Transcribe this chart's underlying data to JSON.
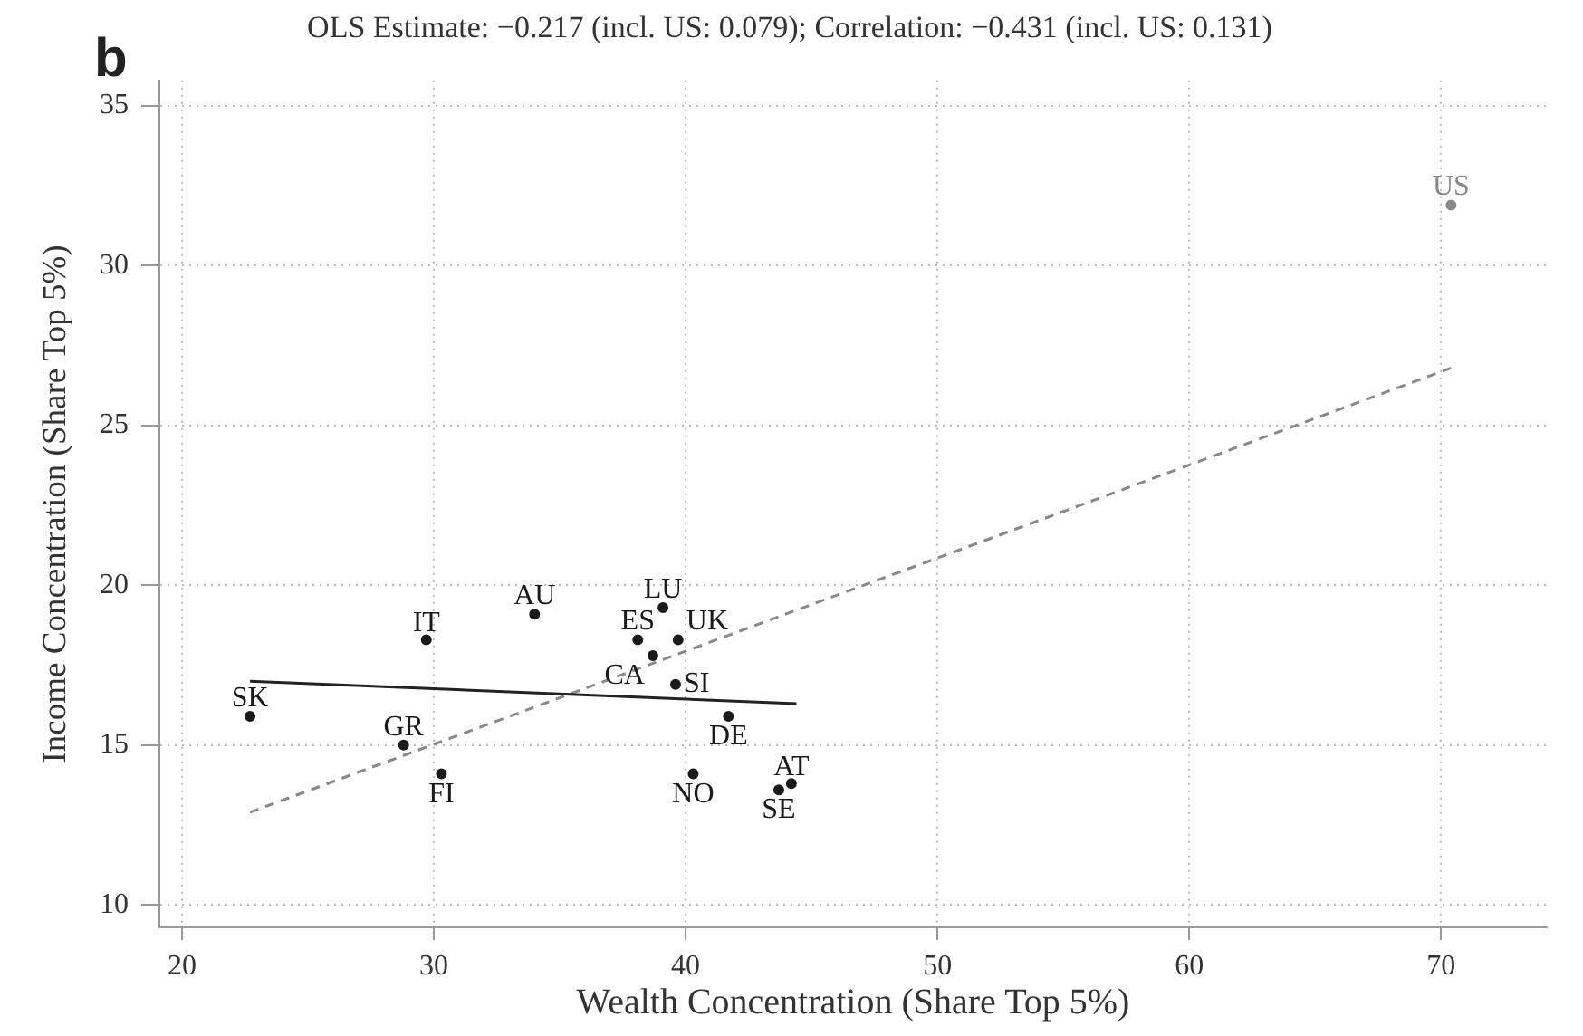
{
  "chart_data": {
    "type": "scatter",
    "title": "OLS Estimate: −0.217 (incl. US: 0.079); Correlation: −0.431 (incl. US: 0.131)",
    "xlabel": "Wealth Concentration (Share Top 5%)",
    "ylabel": "Income Concentration (Share Top 5%)",
    "annotations": [
      "b"
    ],
    "xlim": [
      19.1,
      74.2
    ],
    "ylim": [
      9.3,
      35.8
    ],
    "xticks": [
      20,
      30,
      40,
      50,
      60,
      70
    ],
    "yticks": [
      10,
      15,
      20,
      25,
      30,
      35
    ],
    "grid": true,
    "legend": false,
    "marker": "circle",
    "series": [
      {
        "name": "SK",
        "color": "#1a1a1a",
        "x": [
          22.7
        ],
        "values": [
          15.9
        ]
      },
      {
        "name": "GR",
        "color": "#1a1a1a",
        "x": [
          28.8
        ],
        "values": [
          15.0
        ]
      },
      {
        "name": "FI",
        "color": "#1a1a1a",
        "x": [
          30.3
        ],
        "values": [
          14.1
        ]
      },
      {
        "name": "IT",
        "color": "#1a1a1a",
        "x": [
          29.7
        ],
        "values": [
          18.3
        ]
      },
      {
        "name": "AU",
        "color": "#1a1a1a",
        "x": [
          34.0
        ],
        "values": [
          19.1
        ]
      },
      {
        "name": "LU",
        "color": "#1a1a1a",
        "x": [
          39.1
        ],
        "values": [
          19.3
        ]
      },
      {
        "name": "ES",
        "color": "#1a1a1a",
        "x": [
          38.1
        ],
        "values": [
          18.3
        ]
      },
      {
        "name": "UK",
        "color": "#1a1a1a",
        "x": [
          39.7
        ],
        "values": [
          18.3
        ]
      },
      {
        "name": "CA",
        "color": "#1a1a1a",
        "x": [
          38.7
        ],
        "values": [
          17.8
        ]
      },
      {
        "name": "SI",
        "color": "#1a1a1a",
        "x": [
          39.6
        ],
        "values": [
          16.9
        ]
      },
      {
        "name": "DE",
        "color": "#1a1a1a",
        "x": [
          41.7
        ],
        "values": [
          15.9
        ]
      },
      {
        "name": "NO",
        "color": "#1a1a1a",
        "x": [
          40.3
        ],
        "values": [
          14.1
        ]
      },
      {
        "name": "AT",
        "color": "#1a1a1a",
        "x": [
          44.2
        ],
        "values": [
          13.8
        ]
      },
      {
        "name": "SE",
        "color": "#1a1a1a",
        "x": [
          43.7
        ],
        "values": [
          13.6
        ]
      },
      {
        "name": "US",
        "color": "#888888",
        "x": [
          70.4
        ],
        "values": [
          31.9
        ]
      },
      {
        "type": "line",
        "marker": "none",
        "color": "#222222",
        "line_style": "solid",
        "x": [
          22.7,
          44.4
        ],
        "values": [
          17.0,
          16.3
        ]
      },
      {
        "type": "line",
        "marker": "none",
        "color": "#888888",
        "line_style": "dashed",
        "x": [
          22.7,
          70.4
        ],
        "values": [
          12.9,
          26.8
        ]
      }
    ]
  }
}
